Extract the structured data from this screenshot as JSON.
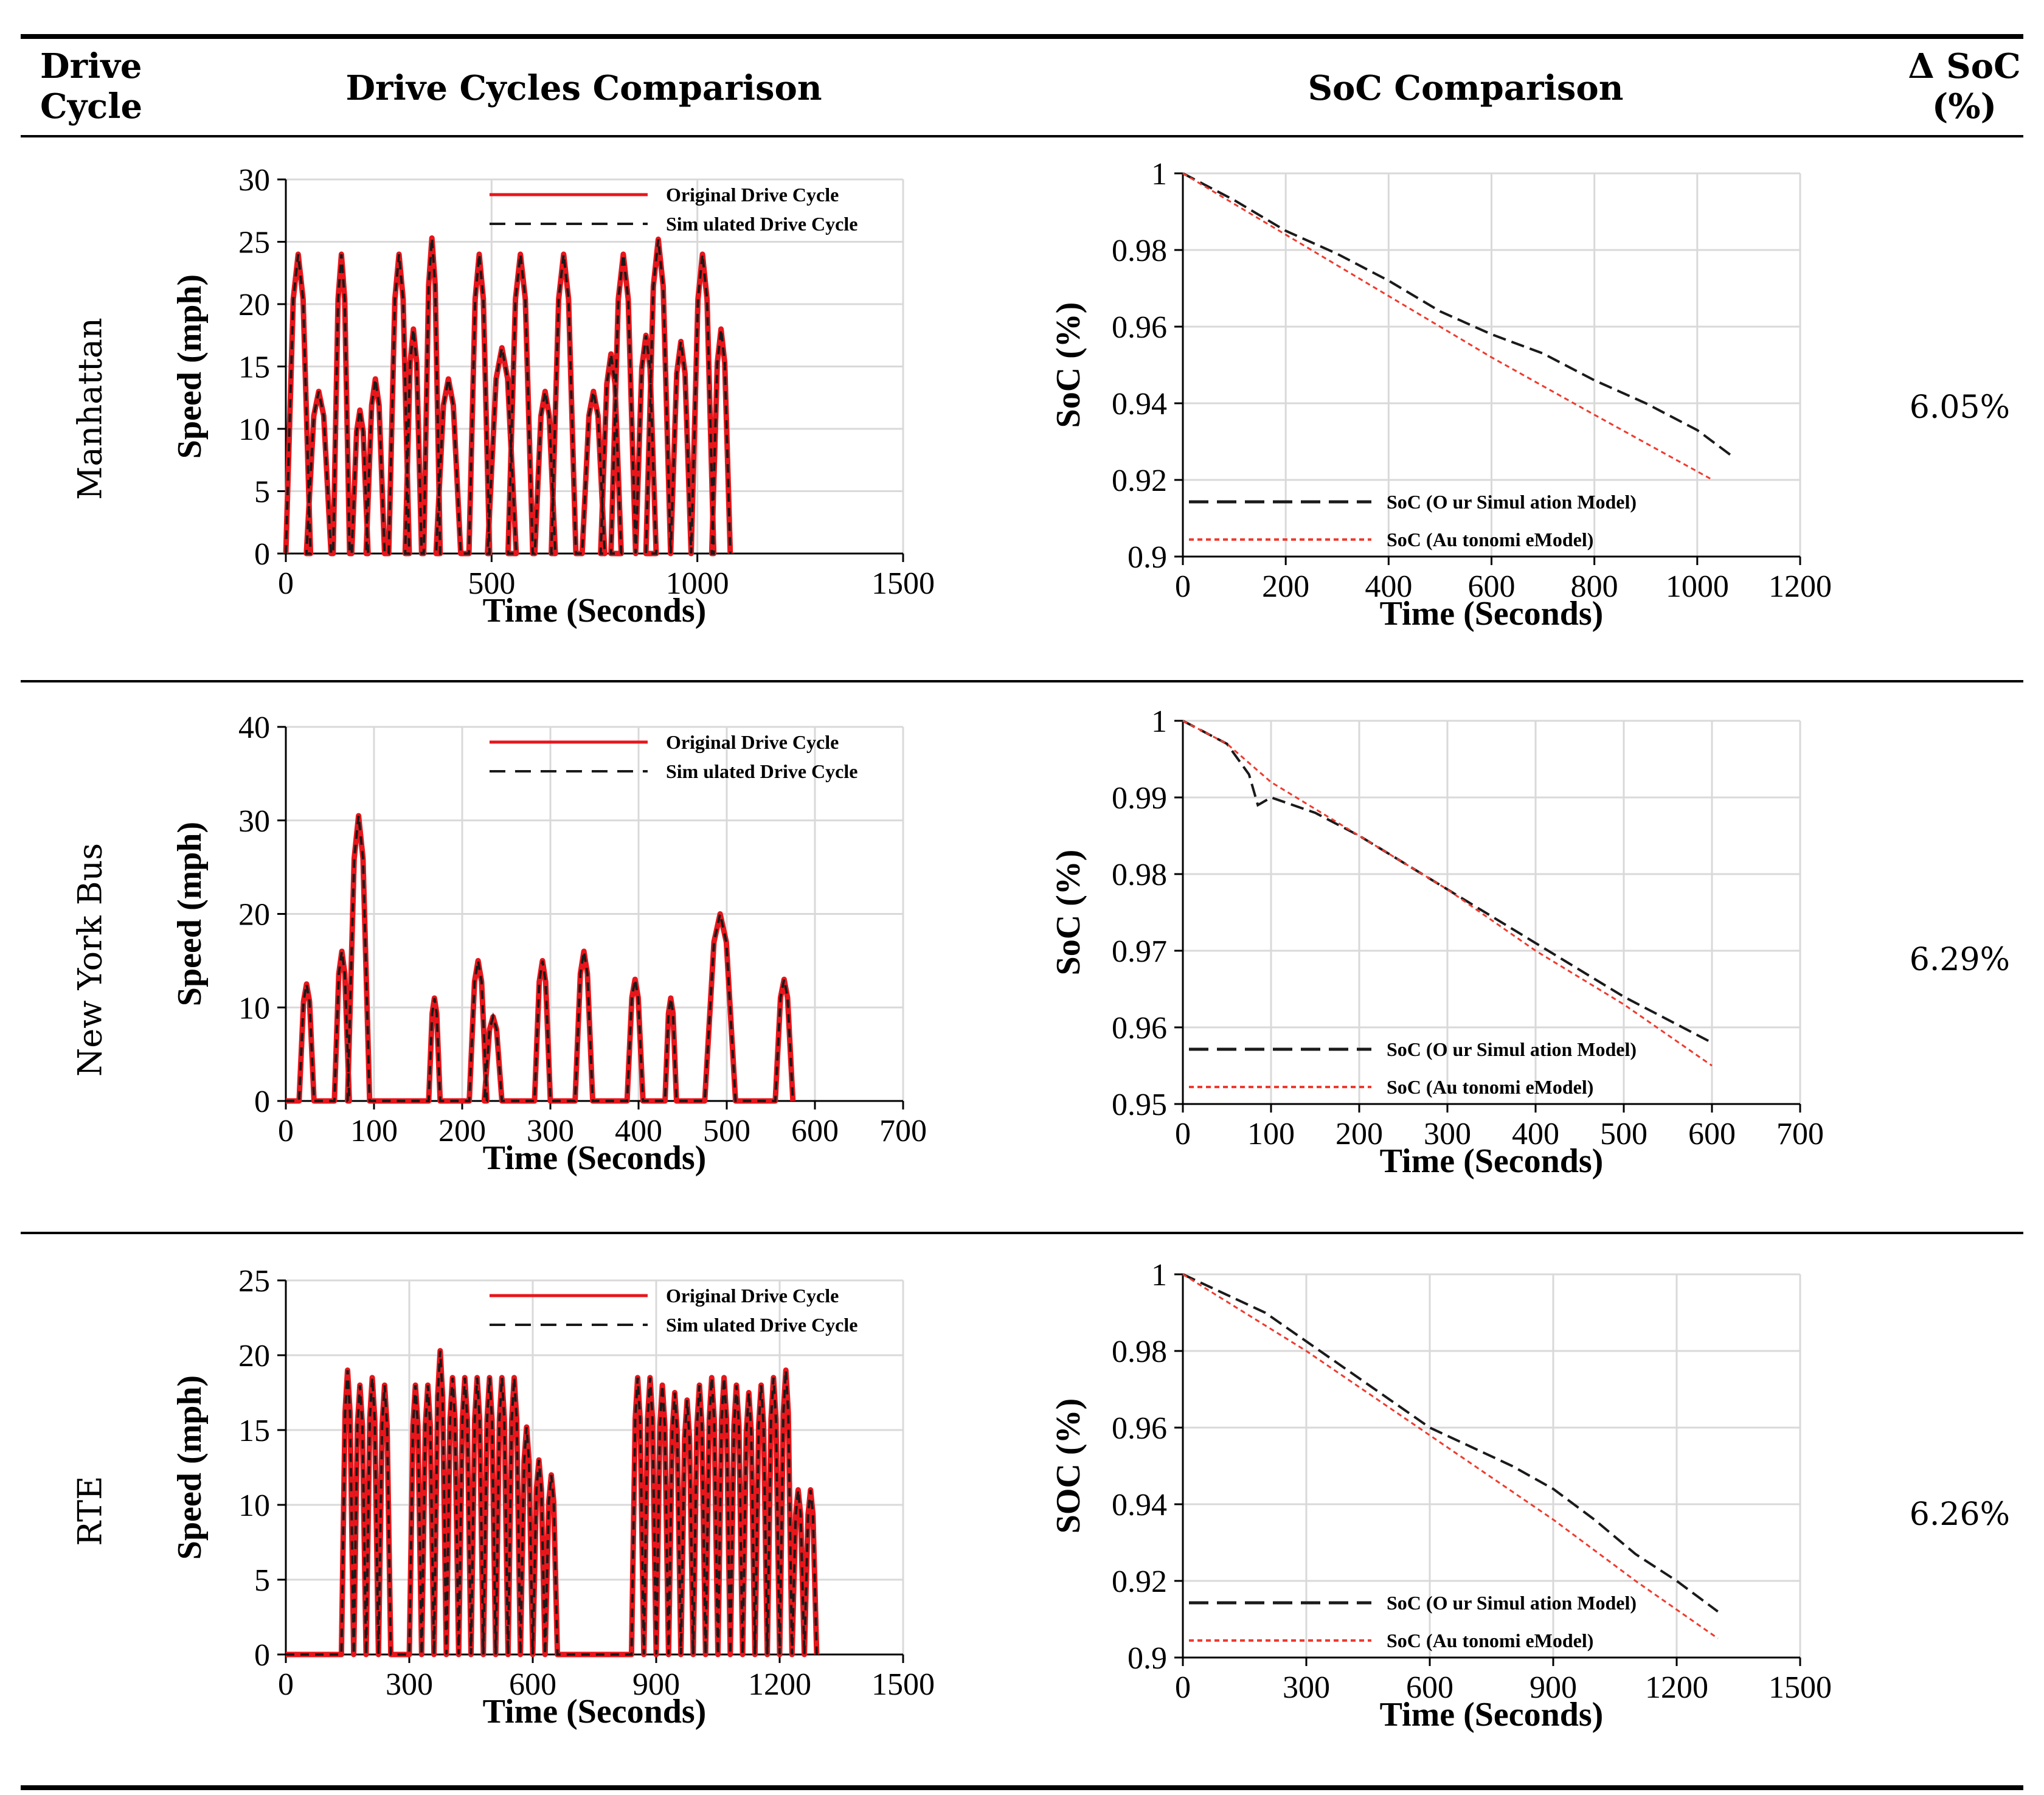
{
  "header": {
    "col_drive_cycle": "Drive Cycle",
    "col_drive_cycles_comparison": "Drive Cycles Comparison",
    "col_soc_comparison": "SoC Comparison",
    "col_delta_soc": "Δ SoC (%)"
  },
  "colors": {
    "original": "#e8161b",
    "simulated": "#1a1a1a",
    "grid": "#d9d9d9",
    "autonomie": "#f03a2e"
  },
  "rows": [
    {
      "name": "Manhattan",
      "delta": "6.05%",
      "speed_chart": {
        "type": "line",
        "x_label": "Time (Seconds)",
        "y_label": "Speed (mph)",
        "xlim": [
          0,
          1500
        ],
        "ylim": [
          0,
          30
        ],
        "x_ticks": [
          0,
          500,
          1000,
          1500
        ],
        "y_ticks": [
          0,
          5,
          10,
          15,
          20,
          25,
          30
        ],
        "legend": [
          "Original Drive Cycle",
          "Sim ulated Drive Cycle"
        ],
        "pulses": [
          [
            0,
            60,
            24
          ],
          [
            50,
            110,
            13
          ],
          [
            115,
            155,
            24
          ],
          [
            160,
            200,
            11.5
          ],
          [
            195,
            240,
            14
          ],
          [
            250,
            300,
            24
          ],
          [
            290,
            330,
            18
          ],
          [
            335,
            375,
            25.3
          ],
          [
            365,
            425,
            14
          ],
          [
            445,
            495,
            24
          ],
          [
            490,
            560,
            16.5
          ],
          [
            540,
            600,
            24
          ],
          [
            605,
            655,
            13
          ],
          [
            645,
            705,
            24
          ],
          [
            720,
            775,
            13
          ],
          [
            765,
            815,
            16
          ],
          [
            790,
            850,
            24
          ],
          [
            850,
            900,
            17.5
          ],
          [
            875,
            935,
            25.2
          ],
          [
            935,
            985,
            17
          ],
          [
            985,
            1040,
            24
          ],
          [
            1035,
            1080,
            18
          ]
        ]
      },
      "soc_chart": {
        "type": "line",
        "x_label": "Time (Seconds)",
        "y_label": "SoC (%)",
        "xlim": [
          0,
          1200
        ],
        "ylim": [
          0.9,
          1
        ],
        "x_ticks": [
          0,
          200,
          400,
          600,
          800,
          1000,
          1200
        ],
        "y_ticks": [
          0.9,
          0.92,
          0.94,
          0.96,
          0.98,
          1
        ],
        "series": [
          {
            "name": "SoC (O ur Simul ation Model)",
            "points": [
              [
                0,
                1
              ],
              [
                100,
                0.993
              ],
              [
                200,
                0.985
              ],
              [
                300,
                0.979
              ],
              [
                400,
                0.972
              ],
              [
                500,
                0.964
              ],
              [
                600,
                0.958
              ],
              [
                700,
                0.953
              ],
              [
                800,
                0.946
              ],
              [
                900,
                0.94
              ],
              [
                1000,
                0.933
              ],
              [
                1070,
                0.926
              ]
            ]
          },
          {
            "name": "SoC (Au tonomi eModel)",
            "points": [
              [
                0,
                1
              ],
              [
                200,
                0.984
              ],
              [
                400,
                0.968
              ],
              [
                600,
                0.952
              ],
              [
                800,
                0.937
              ],
              [
                1030,
                0.92
              ]
            ]
          }
        ]
      }
    },
    {
      "name": "New York Bus",
      "delta": "6.29%",
      "speed_chart": {
        "type": "line",
        "x_label": "Time (Seconds)",
        "y_label": "Speed (mph)",
        "xlim": [
          0,
          700
        ],
        "ylim": [
          0,
          40
        ],
        "x_ticks": [
          0,
          100,
          200,
          300,
          400,
          500,
          600,
          700
        ],
        "y_ticks": [
          0,
          10,
          20,
          30,
          40
        ],
        "legend": [
          "Original Drive Cycle",
          "Sim ulated Drive Cycle"
        ],
        "pulses": [
          [
            15,
            32,
            12.5
          ],
          [
            55,
            72,
            16
          ],
          [
            70,
            95,
            30.5
          ],
          [
            162,
            175,
            11
          ],
          [
            208,
            228,
            15
          ],
          [
            225,
            245,
            9
          ],
          [
            282,
            300,
            15
          ],
          [
            328,
            348,
            16
          ],
          [
            387,
            405,
            13
          ],
          [
            430,
            443,
            11
          ],
          [
            475,
            510,
            20
          ],
          [
            555,
            575,
            13
          ]
        ]
      },
      "soc_chart": {
        "type": "line",
        "x_label": "Time (Seconds)",
        "y_label": "SoC (%)",
        "xlim": [
          0,
          700
        ],
        "ylim": [
          0.95,
          1
        ],
        "x_ticks": [
          0,
          100,
          200,
          300,
          400,
          500,
          600,
          700
        ],
        "y_ticks": [
          0.95,
          0.96,
          0.97,
          0.98,
          0.99,
          1
        ],
        "series": [
          {
            "name": "SoC (O ur Simul ation Model)",
            "points": [
              [
                0,
                1
              ],
              [
                50,
                0.997
              ],
              [
                75,
                0.993
              ],
              [
                85,
                0.989
              ],
              [
                100,
                0.99
              ],
              [
                150,
                0.988
              ],
              [
                200,
                0.985
              ],
              [
                300,
                0.978
              ],
              [
                400,
                0.971
              ],
              [
                500,
                0.964
              ],
              [
                600,
                0.958
              ]
            ]
          },
          {
            "name": "SoC (Au tonomi eModel)",
            "points": [
              [
                0,
                1
              ],
              [
                50,
                0.997
              ],
              [
                100,
                0.992
              ],
              [
                200,
                0.985
              ],
              [
                300,
                0.978
              ],
              [
                400,
                0.97
              ],
              [
                500,
                0.963
              ],
              [
                600,
                0.955
              ]
            ]
          }
        ]
      }
    },
    {
      "name": "RTE",
      "delta": "6.26%",
      "speed_chart": {
        "type": "line",
        "x_label": "Time (Seconds)",
        "y_label": "Speed (mph)",
        "xlim": [
          0,
          1500
        ],
        "ylim": [
          0,
          25
        ],
        "x_ticks": [
          0,
          300,
          600,
          900,
          1200,
          1500
        ],
        "y_ticks": [
          0,
          5,
          10,
          15,
          20,
          25
        ],
        "legend": [
          "Original Drive Cycle",
          "Sim ulated Drive Cycle"
        ],
        "pulses": [
          [
            135,
            165,
            19
          ],
          [
            165,
            195,
            18
          ],
          [
            195,
            225,
            18.5
          ],
          [
            225,
            255,
            18
          ],
          [
            300,
            330,
            18
          ],
          [
            330,
            360,
            18
          ],
          [
            360,
            390,
            20.3
          ],
          [
            390,
            420,
            18.5
          ],
          [
            420,
            450,
            18.5
          ],
          [
            450,
            480,
            18.5
          ],
          [
            480,
            510,
            18.5
          ],
          [
            510,
            540,
            18.5
          ],
          [
            540,
            570,
            18.5
          ],
          [
            570,
            600,
            15.2
          ],
          [
            600,
            630,
            13
          ],
          [
            630,
            660,
            12
          ],
          [
            840,
            870,
            18.5
          ],
          [
            870,
            900,
            18.5
          ],
          [
            900,
            930,
            18
          ],
          [
            930,
            960,
            17.5
          ],
          [
            960,
            990,
            17
          ],
          [
            990,
            1020,
            18
          ],
          [
            1020,
            1050,
            18.5
          ],
          [
            1050,
            1080,
            18.5
          ],
          [
            1080,
            1110,
            18
          ],
          [
            1110,
            1140,
            17.5
          ],
          [
            1140,
            1170,
            18
          ],
          [
            1170,
            1200,
            18.5
          ],
          [
            1200,
            1230,
            19
          ],
          [
            1230,
            1260,
            11
          ],
          [
            1260,
            1290,
            11
          ]
        ]
      },
      "soc_chart": {
        "type": "line",
        "x_label": "Time (Seconds)",
        "y_label": "SOC (%)",
        "xlim": [
          0,
          1500
        ],
        "ylim": [
          0.9,
          1
        ],
        "x_ticks": [
          0,
          300,
          600,
          900,
          1200,
          1500
        ],
        "y_ticks": [
          0.9,
          0.92,
          0.94,
          0.96,
          0.98,
          1
        ],
        "series": [
          {
            "name": "SoC (O ur Simul ation Model)",
            "points": [
              [
                0,
                1
              ],
              [
                200,
                0.99
              ],
              [
                400,
                0.975
              ],
              [
                600,
                0.96
              ],
              [
                800,
                0.95
              ],
              [
                900,
                0.944
              ],
              [
                1000,
                0.936
              ],
              [
                1100,
                0.927
              ],
              [
                1200,
                0.92
              ],
              [
                1300,
                0.912
              ]
            ]
          },
          {
            "name": "SoC (Au tonomi eModel)",
            "points": [
              [
                0,
                1
              ],
              [
                300,
                0.98
              ],
              [
                600,
                0.958
              ],
              [
                900,
                0.936
              ],
              [
                1100,
                0.92
              ],
              [
                1300,
                0.905
              ]
            ]
          }
        ]
      }
    }
  ]
}
